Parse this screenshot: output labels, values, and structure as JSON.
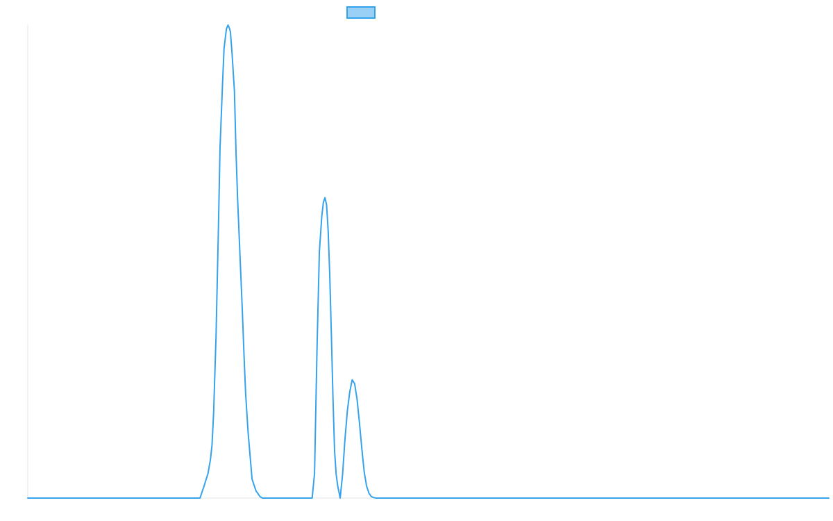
{
  "chart_data": {
    "type": "line",
    "title": "",
    "xlabel": "",
    "ylabel": "",
    "grid": false,
    "legend": {
      "position": "top-center",
      "entries": [
        {
          "name": "",
          "color": "#36a2eb",
          "fill": "#9ad0f5"
        }
      ]
    },
    "xlim": [
      0,
      1000
    ],
    "ylim": [
      0,
      100
    ],
    "series": [
      {
        "name": "",
        "color": "#36a2eb",
        "x": [
          0,
          215,
          220,
          225,
          228,
          230,
          232,
          235,
          238,
          240,
          243,
          245,
          248,
          250,
          252,
          253,
          255,
          258,
          260,
          262,
          265,
          268,
          270,
          272,
          275,
          278,
          280,
          285,
          290,
          293,
          296,
          355,
          358,
          361,
          364,
          367,
          369,
          371,
          373,
          375,
          377,
          379,
          381,
          383,
          385,
          387,
          390,
          393,
          396,
          399,
          402,
          405,
          408,
          411,
          414,
          417,
          420,
          423,
          426,
          429,
          432,
          435,
          1000
        ],
        "y": [
          0,
          0,
          2.5,
          5.2,
          8.1,
          11.2,
          18,
          34,
          57,
          74,
          87,
          95,
          99.2,
          100,
          99.2,
          98.5,
          94,
          86,
          73,
          63,
          51,
          39,
          30,
          22,
          14,
          8,
          4,
          1.5,
          0.3,
          0,
          0,
          0,
          5.2,
          31,
          52,
          59.5,
          62.5,
          63.5,
          62,
          56.5,
          47,
          34.5,
          21.2,
          10,
          5,
          2.5,
          0,
          5,
          12.5,
          18.5,
          22.5,
          25,
          24.2,
          21,
          16,
          10.5,
          5.5,
          2.5,
          1,
          0.3,
          0.1,
          0,
          0
        ]
      }
    ]
  }
}
